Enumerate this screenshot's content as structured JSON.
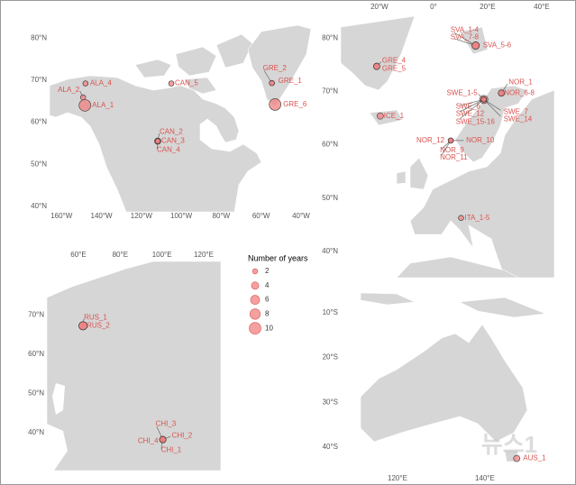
{
  "panels": [
    {
      "xlim": [
        -166,
        -35
      ],
      "ylim": [
        38.7,
        82.6
      ],
      "xticks": [
        {
          "value": -160,
          "label": "160°W"
        },
        {
          "value": -140,
          "label": "140°W"
        },
        {
          "value": -120,
          "label": "120°W"
        },
        {
          "value": -100,
          "label": "100°W"
        },
        {
          "value": -80,
          "label": "80°W"
        },
        {
          "value": -60,
          "label": "60°W"
        },
        {
          "value": -40,
          "label": "40°W"
        }
      ],
      "yticks": [
        {
          "value": 40,
          "label": "40°N"
        },
        {
          "value": 50,
          "label": "50°N"
        },
        {
          "value": 60,
          "label": "60°N"
        },
        {
          "value": 70,
          "label": "70°N"
        },
        {
          "value": 80,
          "label": "80°N"
        }
      ],
      "sites": [
        {
          "label": "ALA_1",
          "lon": -148.3,
          "lat": 64.0,
          "years": 10
        },
        {
          "label": "ALA_2",
          "lon": -149.2,
          "lat": 65.9,
          "years": 2
        },
        {
          "label": "ALA_4",
          "lon": -148,
          "lat": 69.2,
          "years": 2
        },
        {
          "label": "CAN_5",
          "lon": -105,
          "lat": 69.2,
          "years": 2
        },
        {
          "label": "CAN_2",
          "lon": -111.8,
          "lat": 55.5,
          "years": 2
        },
        {
          "label": "CAN_3",
          "lon": -111.8,
          "lat": 55.5,
          "years": 3
        },
        {
          "label": "CAN_4",
          "lon": -111.8,
          "lat": 55.5,
          "years": 2
        },
        {
          "label": "GRE_2",
          "lon": -54.6,
          "lat": 69.3,
          "years": 2
        },
        {
          "label": "GRE_1",
          "lon": -54.6,
          "lat": 69.3,
          "years": 2
        },
        {
          "label": "GRE_6",
          "lon": -53,
          "lat": 64.2,
          "years": 10
        }
      ]
    },
    {
      "xlim": [
        -34.3,
        44.7
      ],
      "ylim": [
        35.1,
        84.1
      ],
      "xticks": [
        {
          "value": -20,
          "label": "20°W"
        },
        {
          "value": 0,
          "label": "0°"
        },
        {
          "value": 20,
          "label": "20°E"
        },
        {
          "value": 40,
          "label": "40°E"
        }
      ],
      "yticks": [
        {
          "value": 40,
          "label": "40°N"
        },
        {
          "value": 50,
          "label": "50°N"
        },
        {
          "value": 60,
          "label": "60°N"
        },
        {
          "value": 70,
          "label": "70°N"
        },
        {
          "value": 80,
          "label": "80°N"
        }
      ],
      "sites": [
        {
          "label": "SVA_1-4",
          "lon": 15.6,
          "lat": 78.6,
          "years": 4
        },
        {
          "label": "SVA_7-8",
          "lon": 15.6,
          "lat": 78.6,
          "years": 4
        },
        {
          "label": "SVA_5-6",
          "lon": 15.6,
          "lat": 78.6,
          "years": 4
        },
        {
          "label": "GRE_4",
          "lon": -21,
          "lat": 74.7,
          "years": 3
        },
        {
          "label": "GRE_5",
          "lon": -21,
          "lat": 74.7,
          "years": 3
        },
        {
          "label": "ICE_1",
          "lon": -19.7,
          "lat": 65.4,
          "years": 3
        },
        {
          "label": "NOR_1",
          "lon": 25.1,
          "lat": 69.7,
          "years": 2
        },
        {
          "label": "NOR_6-8",
          "lon": 25.1,
          "lat": 69.7,
          "years": 3
        },
        {
          "label": "SWE_1-5",
          "lon": 18.6,
          "lat": 68.5,
          "years": 5
        },
        {
          "label": "SWE_6",
          "lon": 18.6,
          "lat": 68.5,
          "years": 2
        },
        {
          "label": "SWE_12",
          "lon": 18.6,
          "lat": 68.5,
          "years": 2
        },
        {
          "label": "SWE_15-16",
          "lon": 18.6,
          "lat": 68.5,
          "years": 2
        },
        {
          "label": "SWE_7",
          "lon": 18.6,
          "lat": 68.5,
          "years": 2
        },
        {
          "label": "SWE_14",
          "lon": 18.6,
          "lat": 68.5,
          "years": 2
        },
        {
          "label": "NOR_12",
          "lon": 6.4,
          "lat": 60.8,
          "years": 2
        },
        {
          "label": "NOR_10",
          "lon": 6.4,
          "lat": 60.8,
          "years": 2
        },
        {
          "label": "NOR_9",
          "lon": 6.4,
          "lat": 60.8,
          "years": 2
        },
        {
          "label": "NOR_11",
          "lon": 6.4,
          "lat": 60.8,
          "years": 2
        },
        {
          "label": "ITA_1-5",
          "lon": 10.2,
          "lat": 46.3,
          "years": 2
        }
      ]
    },
    {
      "xlim": [
        44.9,
        128.2
      ],
      "ylim": [
        30.3,
        83.6
      ],
      "xticks": [
        {
          "value": 60,
          "label": "60°E"
        },
        {
          "value": 80,
          "label": "80°E"
        },
        {
          "value": 100,
          "label": "100°E"
        },
        {
          "value": 120,
          "label": "120°E"
        }
      ],
      "yticks": [
        {
          "value": 40,
          "label": "40°N"
        },
        {
          "value": 50,
          "label": "50°N"
        },
        {
          "value": 60,
          "label": "60°N"
        },
        {
          "value": 70,
          "label": "70°N"
        }
      ],
      "sites": [
        {
          "label": "RUS_1",
          "lon": 62.2,
          "lat": 67.2,
          "years": 5
        },
        {
          "label": "RUS_2",
          "lon": 62.2,
          "lat": 67.2,
          "years": 5
        },
        {
          "label": "CHI_3",
          "lon": 100.4,
          "lat": 38.2,
          "years": 3
        },
        {
          "label": "CHI_2",
          "lon": 100.4,
          "lat": 38.2,
          "years": 3
        },
        {
          "label": "CHI_4",
          "lon": 100.4,
          "lat": 38.2,
          "years": 3
        },
        {
          "label": "CHI_1",
          "lon": 100.4,
          "lat": 38.2,
          "years": 3
        }
      ]
    },
    {
      "xlim": [
        107,
        158.6
      ],
      "ylim": [
        -44.8,
        -5.6
      ],
      "xticks": [
        {
          "value": 120,
          "label": "120°E"
        },
        {
          "value": 140,
          "label": "140°E"
        }
      ],
      "yticks": [
        {
          "value": -10,
          "label": "10°S"
        },
        {
          "value": -20,
          "label": "20°S"
        },
        {
          "value": -30,
          "label": "30°S"
        },
        {
          "value": -40,
          "label": "40°S"
        }
      ],
      "sites": [
        {
          "label": "AUS_1",
          "lon": 147.3,
          "lat": -42.5,
          "years": 3
        }
      ]
    }
  ],
  "legend": {
    "title": "Number of years",
    "sizes": [
      2,
      4,
      6,
      8,
      10
    ]
  },
  "watermark": "뉴스1"
}
